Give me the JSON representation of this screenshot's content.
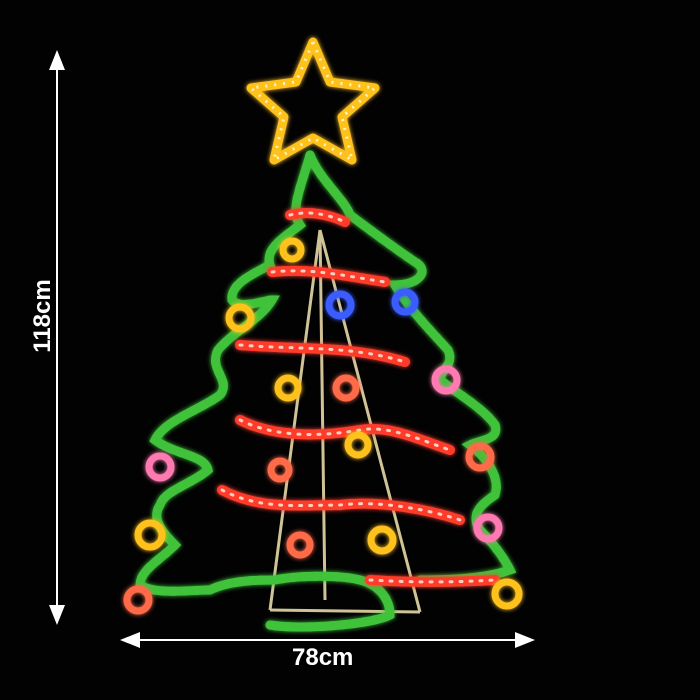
{
  "dimensions": {
    "height_label": "118cm",
    "width_label": "78cm"
  },
  "colors": {
    "background": "#020203",
    "star": "#ffc21a",
    "tree_outline": "#3fc23a",
    "garland": "#ff3a2a",
    "ornament_yellow": "#ffc21a",
    "ornament_pink": "#ff7ab0",
    "ornament_blue": "#3a5cff",
    "frame": "#f5e6b0",
    "arrow": "#ffffff"
  }
}
